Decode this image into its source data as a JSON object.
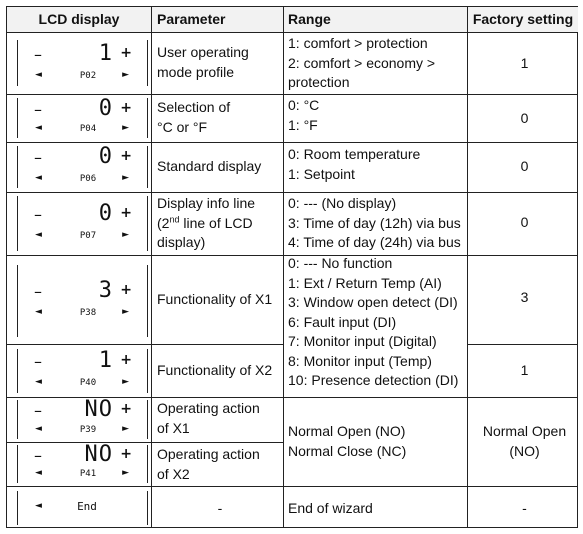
{
  "headers": {
    "lcd": "LCD display",
    "parameter": "Parameter",
    "range": "Range",
    "factory": "Factory setting"
  },
  "lcd": {
    "minus": "–",
    "plus": "+",
    "left_arrow": "◄",
    "right_arrow": "►"
  },
  "rows": [
    {
      "lcd_value": "1",
      "lcd_code": "P02",
      "param_lines": [
        "User operating",
        "mode profile"
      ],
      "range_lines": [
        "1: comfort > protection",
        "2: comfort > economy >",
        "protection"
      ],
      "factory": "1"
    },
    {
      "lcd_value": "0",
      "lcd_code": "P04",
      "param_lines": [
        "Selection of",
        "°C or °F"
      ],
      "range_lines": [
        "0: °C",
        "1: °F"
      ],
      "factory": "0"
    },
    {
      "lcd_value": "0",
      "lcd_code": "P06",
      "param_lines": [
        "Standard display"
      ],
      "range_lines": [
        "0: Room temperature",
        "1: Setpoint"
      ],
      "factory": "0"
    },
    {
      "lcd_value": "0",
      "lcd_code": "P07",
      "param_lines": [
        "Display info line",
        "(2",
        "nd",
        " line of LCD",
        "display)"
      ],
      "range_lines": [
        "0: --- (No display)",
        "3: Time of day (12h) via bus",
        "4: Time of day (24h) via bus"
      ],
      "factory": "0"
    },
    {
      "lcd_value": "3",
      "lcd_code": "P38",
      "param_lines": [
        "Functionality of X1"
      ],
      "factory": "3"
    },
    {
      "lcd_value": "1",
      "lcd_code": "P40",
      "param_lines": [
        "Functionality of X2"
      ],
      "factory": "1"
    },
    {
      "lcd_value": "NO",
      "lcd_code": "P39",
      "param_lines": [
        "Operating action",
        "of X1"
      ]
    },
    {
      "lcd_value": "NO",
      "lcd_code": "P41",
      "param_lines": [
        "Operating action",
        "of X2"
      ]
    },
    {
      "lcd_value": "End",
      "param_lines": [
        "-"
      ],
      "range_lines": [
        "End of wizard"
      ],
      "factory": "-"
    }
  ],
  "functionality_range": [
    "0: --- No function",
    "1: Ext / Return Temp (AI)",
    "3: Window open detect (DI)",
    "6: Fault input (DI)",
    "7: Monitor input (Digital)",
    "8: Monitor input (Temp)",
    "10: Presence detection (DI)"
  ],
  "operating_range": [
    "Normal Open (NO)",
    "Normal Close (NC)"
  ],
  "operating_factory": [
    "Normal Open",
    "(NO)"
  ]
}
